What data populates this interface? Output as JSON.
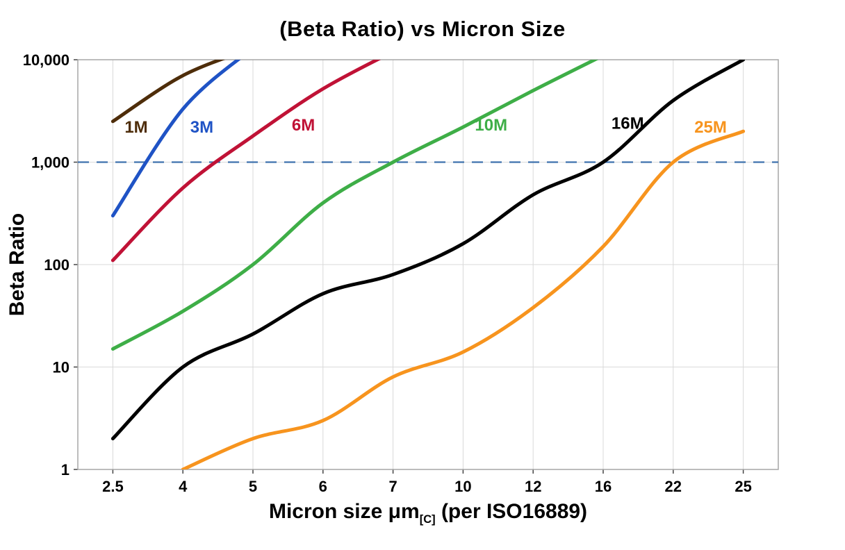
{
  "chart_data": {
    "type": "line",
    "title": "(Beta Ratio) vs Micron Size",
    "ylabel": "Beta Ratio",
    "xlabel": {
      "pre": "Micron size μm",
      "sub": "[C]",
      "post": " (per ISO16889)"
    },
    "categories": [
      2.5,
      4,
      5,
      6,
      7,
      10,
      12,
      16,
      22,
      25
    ],
    "x_tick_labels": [
      "2.5",
      "4",
      "5",
      "6",
      "7",
      "10",
      "12",
      "16",
      "22",
      "25"
    ],
    "y_tick_values": [
      1,
      10,
      100,
      1000,
      10000
    ],
    "y_tick_labels": [
      "1",
      "10",
      "100",
      "1,000",
      "10,000"
    ],
    "ylim": [
      1,
      10000
    ],
    "yscale": "log",
    "xscale": "categorical",
    "grid": true,
    "legend_position": "inline-labels",
    "reference_line": {
      "value": 1000,
      "style": "dashed",
      "color": "#3f72ad"
    },
    "colors": {
      "grid": "#d9d9d9",
      "border": "#a6a6a6",
      "tick": "#444444",
      "text": "#000000"
    },
    "series": [
      {
        "name": "1M",
        "color": "#4e2d0a",
        "values": [
          2500,
          7000,
          13000,
          null,
          null,
          null,
          null,
          null,
          null,
          null
        ],
        "label_pos": {
          "micron": 3.0,
          "value": 2200
        }
      },
      {
        "name": "3M",
        "color": "#1f53c5",
        "values": [
          300,
          3300,
          13000,
          null,
          null,
          null,
          null,
          null,
          null,
          null
        ],
        "label_pos": {
          "micron": 4.27,
          "value": 2200
        }
      },
      {
        "name": "6M",
        "color": "#c01236",
        "values": [
          110,
          560,
          1800,
          5200,
          12000,
          null,
          null,
          null,
          null,
          null
        ],
        "label_pos": {
          "micron": 5.72,
          "value": 2300
        }
      },
      {
        "name": "10M",
        "color": "#3eae47",
        "values": [
          15,
          35,
          100,
          400,
          1000,
          2200,
          5000,
          11000,
          null,
          null
        ],
        "label_pos": {
          "micron": 10.8,
          "value": 2300
        }
      },
      {
        "name": "16M",
        "color": "#000000",
        "values": [
          2,
          10,
          21,
          52,
          80,
          160,
          480,
          1000,
          4000,
          10000
        ],
        "label_pos": {
          "micron": 18.1,
          "value": 2400
        }
      },
      {
        "name": "25M",
        "color": "#f7941e",
        "values": [
          null,
          1,
          2,
          3,
          8,
          14,
          38,
          150,
          1000,
          2000
        ],
        "label_pos": {
          "micron": 23.6,
          "value": 2200
        }
      }
    ]
  }
}
